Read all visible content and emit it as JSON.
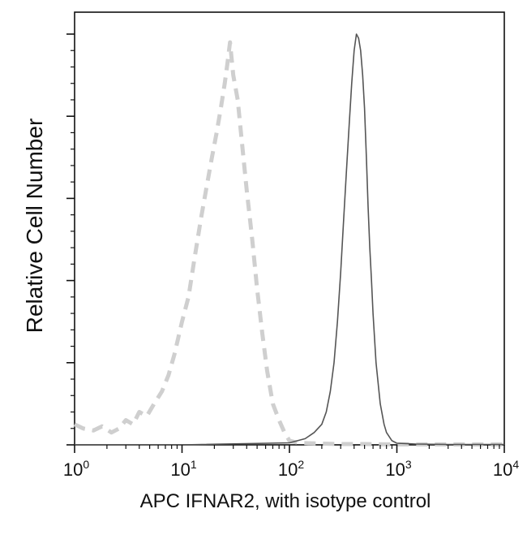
{
  "chart_data": {
    "type": "line",
    "title": "",
    "xlabel": "APC IFNAR2, with isotype control",
    "ylabel": "Relative Cell Number",
    "x_scale": "log",
    "xlim": [
      1,
      10000
    ],
    "ylim": [
      0,
      1.0
    ],
    "grid": false,
    "legend": "none",
    "x_ticks": [
      {
        "value": 1,
        "base": "10",
        "exp": "0"
      },
      {
        "value": 10,
        "base": "10",
        "exp": "1"
      },
      {
        "value": 100,
        "base": "10",
        "exp": "2"
      },
      {
        "value": 1000,
        "base": "10",
        "exp": "3"
      },
      {
        "value": 10000,
        "base": "10",
        "exp": "4"
      }
    ],
    "y_ticks": [
      0,
      0.2,
      0.4,
      0.6,
      0.8,
      1.0
    ],
    "series": [
      {
        "style": "dashed",
        "color": "#cfcfcf",
        "x": [
          1,
          1.2,
          1.5,
          1.8,
          2.2,
          2.6,
          3.0,
          3.5,
          4.0,
          4.7,
          5.5,
          6.5,
          7.5,
          8.5,
          10,
          11.5,
          13,
          15,
          17,
          19,
          21,
          23,
          25,
          26.5,
          28,
          30,
          33,
          36,
          40,
          45,
          50,
          56,
          62,
          70,
          80,
          90,
          100,
          120,
          150,
          200,
          300,
          500,
          1000,
          3000,
          10000
        ],
        "y": [
          0.05,
          0.04,
          0.035,
          0.045,
          0.03,
          0.04,
          0.06,
          0.05,
          0.08,
          0.07,
          0.1,
          0.13,
          0.17,
          0.22,
          0.3,
          0.36,
          0.45,
          0.55,
          0.63,
          0.7,
          0.76,
          0.82,
          0.88,
          0.93,
          0.98,
          0.9,
          0.84,
          0.74,
          0.62,
          0.5,
          0.38,
          0.27,
          0.18,
          0.1,
          0.06,
          0.03,
          0.01,
          0.005,
          0.004,
          0.003,
          0.002,
          0.002,
          0.001,
          0.001,
          0.001
        ]
      },
      {
        "style": "solid",
        "color": "#555555",
        "x": [
          1,
          10,
          100,
          140,
          170,
          200,
          220,
          240,
          260,
          280,
          300,
          320,
          340,
          360,
          380,
          400,
          420,
          440,
          460,
          480,
          500,
          520,
          540,
          560,
          580,
          600,
          640,
          700,
          760,
          800,
          900,
          1000,
          1500,
          3000,
          10000
        ],
        "y": [
          0,
          0,
          0.005,
          0.015,
          0.03,
          0.05,
          0.08,
          0.13,
          0.2,
          0.3,
          0.42,
          0.55,
          0.67,
          0.78,
          0.88,
          0.96,
          1.0,
          0.99,
          0.96,
          0.9,
          0.82,
          0.7,
          0.58,
          0.48,
          0.4,
          0.32,
          0.2,
          0.1,
          0.05,
          0.03,
          0.01,
          0.004,
          0.002,
          0.001,
          0.001
        ]
      }
    ]
  }
}
